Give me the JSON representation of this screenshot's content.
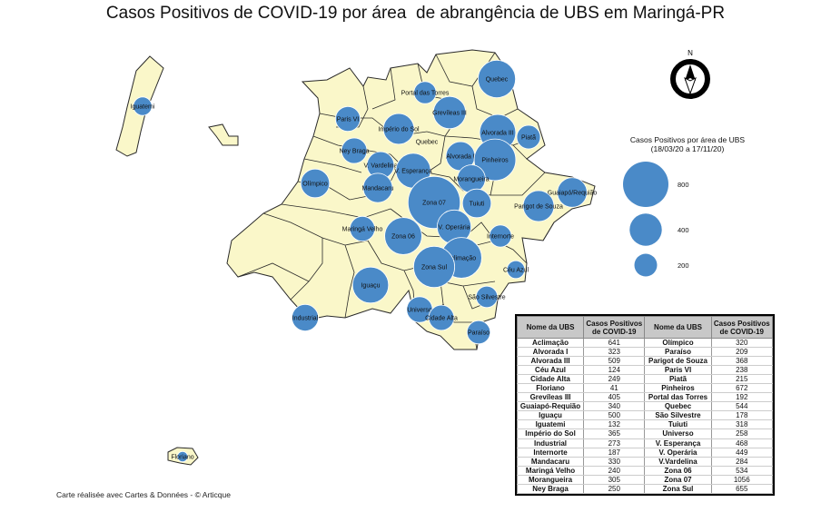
{
  "title": "Casos Positivos de COVID-19 por área  de abrangência de UBS em Maringá-PR",
  "credit": "Carte réalisée avec Cartes & Données - © Articque",
  "north_label": "N",
  "colors": {
    "bubble": "#4a8ac8",
    "land": "#faf7c9",
    "border": "#2a2a2a"
  },
  "legend": {
    "title_line1": "Casos Positivos por área de UBS",
    "title_line2": "(18/03/20 a 17/11/20)",
    "sizes": [
      {
        "value": 800,
        "label": "800"
      },
      {
        "value": 400,
        "label": "400"
      },
      {
        "value": 200,
        "label": "200"
      }
    ]
  },
  "table": {
    "headers": [
      "Nome da UBS",
      "Casos Positivos de COVID-19",
      "Nome da UBS",
      "Casos Positivos de COVID-19"
    ],
    "rows": [
      [
        "Aclimação",
        "641",
        "Olímpico",
        "320"
      ],
      [
        "Alvorada I",
        "323",
        "Paraíso",
        "209"
      ],
      [
        "Alvorada III",
        "509",
        "Parigot de Souza",
        "368"
      ],
      [
        "Céu Azul",
        "124",
        "Paris VI",
        "238"
      ],
      [
        "Cidade Alta",
        "249",
        "Piatã",
        "215"
      ],
      [
        "Floriano",
        "41",
        "Pinheiros",
        "672"
      ],
      [
        "Grevíleas III",
        "405",
        "Portal das Torres",
        "192"
      ],
      [
        "Guaiapó-Requião",
        "340",
        "Quebec",
        "544"
      ],
      [
        "Iguaçu",
        "500",
        "São Silvestre",
        "178"
      ],
      [
        "Iguatemi",
        "132",
        "Tuiuti",
        "318"
      ],
      [
        "Império do Sol",
        "365",
        "Universo",
        "258"
      ],
      [
        "Industrial",
        "273",
        "V. Esperança",
        "468"
      ],
      [
        "Internorte",
        "187",
        "V. Operária",
        "449"
      ],
      [
        "Mandacaru",
        "330",
        "V.Vardelina",
        "284"
      ],
      [
        "Maringá Velho",
        "240",
        "Zona 06",
        "534"
      ],
      [
        "Morangueira",
        "305",
        "Zona 07",
        "1056"
      ],
      [
        "Ney Braga",
        "250",
        "Zona Sul",
        "655"
      ]
    ]
  },
  "map_labels": [
    {
      "name": "Quebec",
      "value": 544
    },
    {
      "name": "Portal das Torres",
      "value": 192
    },
    {
      "name": "Grevíleas III",
      "value": 405
    },
    {
      "name": "Iguatemi",
      "value": 132
    },
    {
      "name": "Paris VI",
      "value": 238
    },
    {
      "name": "Império do Sol",
      "value": 365
    },
    {
      "name": "Alvorada III",
      "value": 509
    },
    {
      "name": "Piatã",
      "value": 215
    },
    {
      "name": "Quebec",
      "value": null
    },
    {
      "name": "Ney Braga",
      "value": 250
    },
    {
      "name": "Alvorada I",
      "value": 323
    },
    {
      "name": "Pinheiros",
      "value": 672
    },
    {
      "name": "V. Vardelina",
      "value": 284
    },
    {
      "name": "V. Esperança",
      "value": 468
    },
    {
      "name": "Morangueira",
      "value": 305
    },
    {
      "name": "Olímpico",
      "value": 320
    },
    {
      "name": "Mandacaru",
      "value": 330
    },
    {
      "name": "Zona 07",
      "value": 1056
    },
    {
      "name": "Tuiuti",
      "value": 318
    },
    {
      "name": "Guaiapó/Requião",
      "value": 340
    },
    {
      "name": "Parigot de Souza",
      "value": 368
    },
    {
      "name": "Maringá Velho",
      "value": 240
    },
    {
      "name": "V. Operária",
      "value": 449
    },
    {
      "name": "Zona 06",
      "value": 534
    },
    {
      "name": "Internorte",
      "value": 187
    },
    {
      "name": "Aclimação",
      "value": 641
    },
    {
      "name": "Zona Sul",
      "value": 655
    },
    {
      "name": "Céu Azul",
      "value": 124
    },
    {
      "name": "Iguaçu",
      "value": 500
    },
    {
      "name": "São Silvestre",
      "value": 178
    },
    {
      "name": "Universo",
      "value": 258
    },
    {
      "name": "Industrial",
      "value": 273
    },
    {
      "name": "Cidade Alta",
      "value": 249
    },
    {
      "name": "Paraíso",
      "value": 209
    },
    {
      "name": "Floriano",
      "value": 41
    }
  ]
}
